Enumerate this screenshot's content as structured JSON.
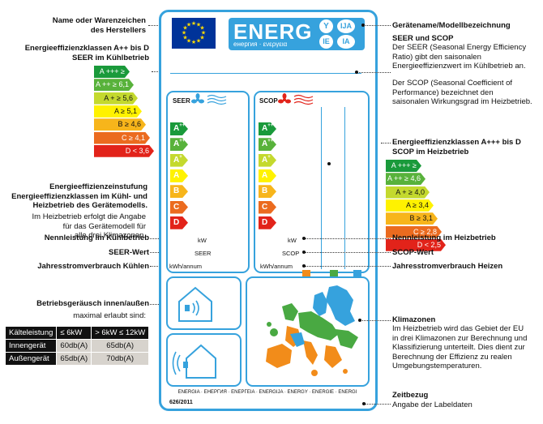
{
  "left_annotations": {
    "manufacturer": [
      "Name oder Warenzeichen",
      "des Herstellers"
    ],
    "classes_cooling": [
      "Energieeffizienzklassen A++ bis D",
      "SEER im Kühlbetrieb"
    ],
    "rating_title": [
      "Energieeffizienzeinstufung",
      "Energieeffizienzklassen im Kühl- und",
      "Heizbetrieb des Gerätemodells."
    ],
    "rating_note": [
      "Im Heizbetrieb erfolgt die Angabe",
      "für das Gerätemodell für",
      "alle drei Klimazonen."
    ],
    "rated_power_cooling": "Nennleistung im Kühlbetrieb",
    "seer_value": "SEER-Wert",
    "annual_cooling": "Jahresstromverbrauch Kühlen",
    "noise_title": "Betriebsgeräusch innen/außen",
    "noise_sub": "maximal erlaubt sind:"
  },
  "right_annotations": {
    "model": "Gerätename/Modellbezeichnung",
    "seer_scop_title": "SEER und SCOP",
    "seer_text": [
      "Der SEER (Seasonal Energy Efficiency",
      "Ratio) gibt den saisonalen",
      "Energieeffizienzwert im Kühlbetrieb an."
    ],
    "scop_text": [
      "Der SCOP (Seasonal Coefficient of",
      "Performance) bezeichnet den",
      "saisonalen Wirkungsgrad im Heizbetrieb."
    ],
    "classes_heating": [
      "Energieeffizienzklassen A+++ bis D",
      "SCOP im Heizbetrieb"
    ],
    "rated_power_heating": "Nennleistung im Heizbetrieb",
    "scop_value": "SCOP-Wert",
    "annual_heating": "Jahresstromverbrauch Heizen",
    "zones_title": "Klimazonen",
    "zones_text": [
      "Im Heizbetrieb wird das Gebiet der EU",
      "in drei Klimazonen zur Berechnung und",
      "Klassifizierung unterteilt. Dies dient zur",
      "Berechnung der Effizienz zu realen",
      "Umgebungstemperaturen."
    ],
    "regulation_title": "Zeitbezug",
    "regulation_text": "Angabe der Labeldaten"
  },
  "seer_scale": [
    {
      "label": "A +++ ≥ 8,5",
      "color": "#1a9a3b"
    },
    {
      "label": "A ++ ≥ 6,1",
      "color": "#58b23b"
    },
    {
      "label": "A + ≥ 5,6",
      "color": "#c4d92e"
    },
    {
      "label": "A ≥ 5,1",
      "color": "#fff200"
    },
    {
      "label": "B ≥ 4,6",
      "color": "#f7b51b"
    },
    {
      "label": "C ≥ 4,1",
      "color": "#eb6b1f"
    },
    {
      "label": "D < 3,6",
      "color": "#e2231a"
    }
  ],
  "scop_scale": [
    {
      "label": "A +++ ≥ 5,1",
      "color": "#1a9a3b"
    },
    {
      "label": "A ++ ≥ 4,6",
      "color": "#58b23b"
    },
    {
      "label": "A + ≥ 4,0",
      "color": "#c4d92e"
    },
    {
      "label": "A ≥ 3,4",
      "color": "#fff200"
    },
    {
      "label": "B ≥ 3,1",
      "color": "#f7b51b"
    },
    {
      "label": "C ≥ 2,8",
      "color": "#eb6b1f"
    },
    {
      "label": "D < 2,5",
      "color": "#e2231a"
    }
  ],
  "label": {
    "energ": "ENERG",
    "energy_words": "енергия · ενεργεια",
    "badge_y": "Y",
    "badge_ija": "IJA",
    "badge_ie": "IE",
    "badge_ia": "IA",
    "seer": "SEER",
    "scop": "SCOP",
    "classes": [
      {
        "letter": "A",
        "sup": "+++",
        "color": "#1a9a3b"
      },
      {
        "letter": "A",
        "sup": "++",
        "color": "#58b23b"
      },
      {
        "letter": "A",
        "sup": "+",
        "color": "#c4d92e"
      },
      {
        "letter": "A",
        "sup": "",
        "color": "#fff200"
      },
      {
        "letter": "B",
        "sup": "",
        "color": "#f7b51b"
      },
      {
        "letter": "C",
        "sup": "",
        "color": "#eb6b1f"
      },
      {
        "letter": "D",
        "sup": "",
        "color": "#e2231a"
      }
    ],
    "kw": "kW",
    "seer_small": "SEER",
    "kwh": "kWh/annum",
    "scop_small": "SCOP",
    "footer_words": "ENERGIA · ЕНЕРГИЯ · ΕΝΕΡΓΕΙΑ · ENERGIJA · ENERGY · ENERGIE · ENERGI",
    "regulation": "626/2011"
  },
  "noise_table": {
    "headers": [
      "Kälteleistung",
      "≤ 6kW",
      "> 6kW ≤ 12kW"
    ],
    "rows": [
      [
        "Innengerät",
        "60db(A)",
        "65db(A)"
      ],
      [
        "Außengerät",
        "65db(A)",
        "70db(A)"
      ]
    ]
  },
  "colors": {
    "frame": "#36a2dd",
    "eu_blue": "#003399",
    "zone_orange": "#f28c1a",
    "zone_green": "#49a942",
    "zone_blue": "#36a2dd"
  }
}
